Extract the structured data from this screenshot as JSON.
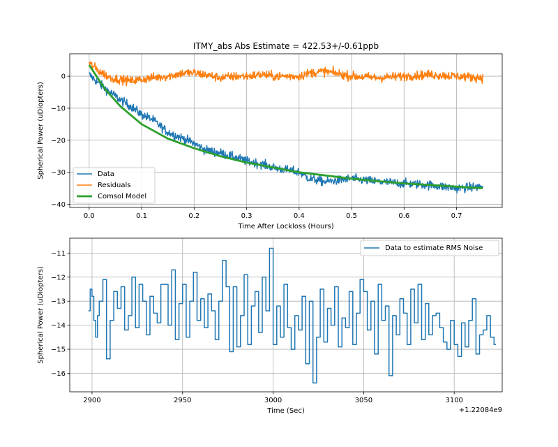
{
  "chart_data": [
    {
      "type": "line",
      "title": "ITMY_abs Abs Estimate = 422.53+/-0.61ppb",
      "xlabel": "Time After Lockloss (Hours)",
      "ylabel": "Spherical Power (uDiopters)",
      "xlim": [
        -0.037,
        0.787
      ],
      "ylim": [
        -41,
        7
      ],
      "xticks": [
        0.0,
        0.1,
        0.2,
        0.3,
        0.4,
        0.5,
        0.6,
        0.7
      ],
      "xtick_labels": [
        "0.0",
        "0.1",
        "0.2",
        "0.3",
        "0.4",
        "0.5",
        "0.6",
        "0.7"
      ],
      "yticks": [
        0,
        -10,
        -20,
        -30,
        -40
      ],
      "ytick_labels": [
        "0",
        "−10",
        "−20",
        "−30",
        "−40"
      ],
      "grid": true,
      "legend_position": "lower-left",
      "series": [
        {
          "name": "Data",
          "color": "#1f77b4",
          "x": [
            0.0,
            0.02,
            0.04,
            0.06,
            0.08,
            0.1,
            0.12,
            0.15,
            0.18,
            0.2,
            0.22,
            0.25,
            0.28,
            0.3,
            0.33,
            0.35,
            0.4,
            0.42,
            0.45,
            0.5,
            0.55,
            0.6,
            0.65,
            0.7,
            0.75
          ],
          "y": [
            0.5,
            -2.5,
            -5,
            -7.5,
            -9.5,
            -12,
            -13.5,
            -17.5,
            -19.5,
            -21,
            -23,
            -24,
            -25.5,
            -26.5,
            -27.5,
            -28.5,
            -30,
            -32,
            -33,
            -32,
            -33,
            -33.5,
            -34,
            -35,
            -34.5
          ]
        },
        {
          "name": "Residuals",
          "color": "#ff7f0e",
          "x": [
            0.0,
            0.02,
            0.04,
            0.06,
            0.08,
            0.1,
            0.12,
            0.15,
            0.18,
            0.2,
            0.22,
            0.25,
            0.28,
            0.3,
            0.33,
            0.35,
            0.4,
            0.42,
            0.45,
            0.5,
            0.55,
            0.6,
            0.65,
            0.7,
            0.75
          ],
          "y": [
            4,
            1.5,
            -0.5,
            -1,
            -1.5,
            -1,
            -0.5,
            0,
            1,
            1,
            0.5,
            -0.5,
            0,
            0,
            0.5,
            0,
            0,
            1,
            1.5,
            0,
            -0.5,
            0,
            0.5,
            0,
            -0.5
          ]
        },
        {
          "name": "Comsol Model",
          "color": "#2ca02c",
          "x": [
            0.0,
            0.03,
            0.06,
            0.1,
            0.15,
            0.2,
            0.25,
            0.3,
            0.35,
            0.4,
            0.45,
            0.5,
            0.55,
            0.6,
            0.65,
            0.7,
            0.75
          ],
          "y": [
            3.5,
            -4,
            -9.5,
            -15,
            -19.5,
            -22.5,
            -25,
            -27,
            -28.5,
            -30,
            -31,
            -32,
            -32.8,
            -33.5,
            -34,
            -34.5,
            -35
          ]
        }
      ]
    },
    {
      "type": "line",
      "title": "",
      "xlabel": "Time (Sec)",
      "ylabel": "Spherical Power (uDiopters)",
      "offset_text": "+1.22084e9",
      "xlim": [
        2887.7,
        3126.5
      ],
      "ylim": [
        -16.77,
        -10.38
      ],
      "xticks": [
        2900,
        2950,
        3000,
        3050,
        3100
      ],
      "xtick_labels": [
        "2900",
        "2950",
        "3000",
        "3050",
        "3100"
      ],
      "yticks": [
        -11,
        -12,
        -13,
        -14,
        -15,
        -16
      ],
      "ytick_labels": [
        "−11",
        "−12",
        "−13",
        "−14",
        "−15",
        "−16"
      ],
      "grid": true,
      "legend_position": "top-right",
      "series": [
        {
          "name": "Data to estimate RMS Noise",
          "color": "#1f77b4",
          "step": true,
          "x": [
            2898,
            2899,
            2900,
            2901,
            2902,
            2903,
            2904,
            2906,
            2908,
            2910,
            2912,
            2914,
            2916,
            2918,
            2920,
            2922,
            2924,
            2926,
            2928,
            2930,
            2932,
            2934,
            2936,
            2938,
            2940,
            2942,
            2944,
            2946,
            2948,
            2950,
            2952,
            2954,
            2956,
            2958,
            2960,
            2962,
            2964,
            2966,
            2968,
            2970,
            2972,
            2974,
            2976,
            2978,
            2980,
            2982,
            2984,
            2986,
            2988,
            2990,
            2992,
            2994,
            2996,
            2998,
            3000,
            3002,
            3004,
            3006,
            3008,
            3010,
            3012,
            3014,
            3016,
            3018,
            3020,
            3022,
            3024,
            3026,
            3028,
            3030,
            3032,
            3034,
            3036,
            3038,
            3040,
            3042,
            3044,
            3046,
            3048,
            3050,
            3052,
            3054,
            3056,
            3058,
            3060,
            3062,
            3064,
            3066,
            3068,
            3070,
            3072,
            3074,
            3076,
            3078,
            3080,
            3082,
            3084,
            3086,
            3088,
            3090,
            3092,
            3094,
            3096,
            3098,
            3100,
            3102,
            3104,
            3106,
            3108,
            3110,
            3112,
            3114,
            3116,
            3118,
            3120,
            3122
          ],
          "y": [
            -13.4,
            -12.5,
            -12.8,
            -13.8,
            -14.5,
            -13.6,
            -13.0,
            -12.1,
            -15.4,
            -13.8,
            -12.6,
            -13.3,
            -12.4,
            -14.2,
            -13.6,
            -12.0,
            -14.1,
            -12.3,
            -13.0,
            -14.4,
            -12.8,
            -13.5,
            -13.9,
            -12.3,
            -12.3,
            -14.0,
            -11.7,
            -14.6,
            -13.1,
            -12.3,
            -14.5,
            -13.0,
            -11.8,
            -13.8,
            -12.9,
            -14.1,
            -12.7,
            -13.4,
            -14.6,
            -13.0,
            -11.3,
            -12.4,
            -15.1,
            -12.4,
            -14.9,
            -13.6,
            -11.9,
            -14.8,
            -13.2,
            -12.6,
            -14.3,
            -12.0,
            -13.4,
            -10.8,
            -14.8,
            -13.2,
            -14.5,
            -12.3,
            -14.1,
            -15.0,
            -13.6,
            -14.2,
            -12.8,
            -15.6,
            -13.0,
            -16.4,
            -14.5,
            -12.5,
            -14.7,
            -13.3,
            -14.0,
            -12.4,
            -14.9,
            -13.7,
            -14.1,
            -12.6,
            -14.8,
            -13.5,
            -12.1,
            -12.6,
            -14.2,
            -13.0,
            -15.2,
            -12.3,
            -13.8,
            -13.2,
            -16.1,
            -13.6,
            -14.4,
            -12.9,
            -13.5,
            -14.8,
            -12.5,
            -13.9,
            -12.3,
            -14.6,
            -13.1,
            -14.4,
            -13.6,
            -13.5,
            -14.1,
            -14.7,
            -15.0,
            -13.8,
            -14.8,
            -15.3,
            -13.9,
            -14.9,
            -13.8,
            -12.9,
            -15.2,
            -14.4,
            -14.2,
            -13.6,
            -14.5,
            -14.8
          ]
        }
      ]
    }
  ]
}
